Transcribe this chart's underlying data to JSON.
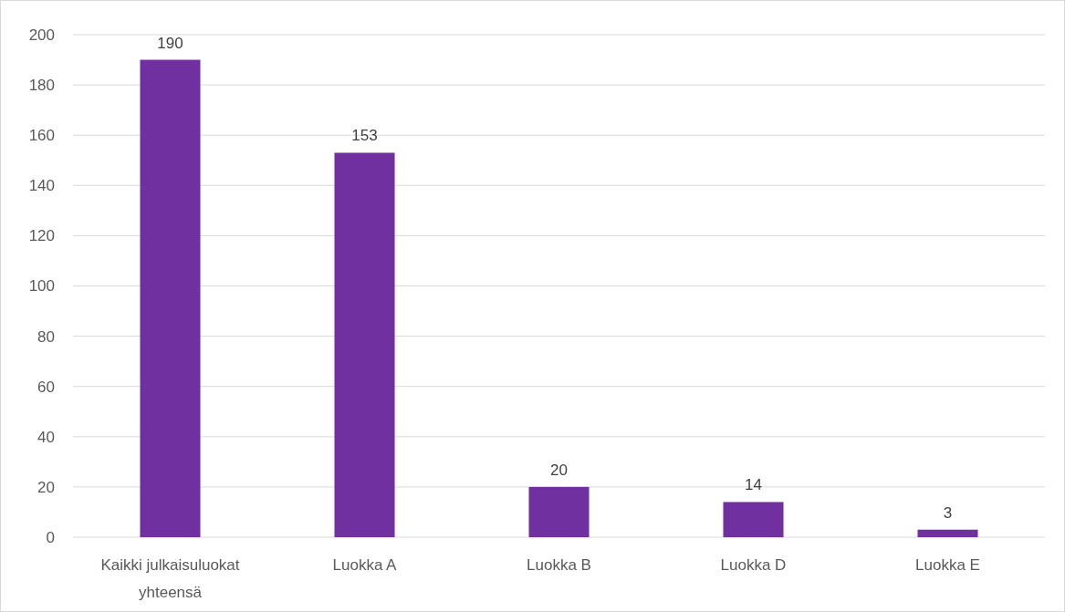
{
  "chart_data": {
    "type": "bar",
    "categories": [
      "Kaikki julkaisuluokat yhteensä",
      "Luokka A",
      "Luokka B",
      "Luokka D",
      "Luokka E"
    ],
    "values": [
      190,
      153,
      20,
      14,
      3
    ],
    "color": "#7030a0",
    "ylim": [
      0,
      200
    ],
    "yticks": [
      0,
      20,
      40,
      60,
      80,
      100,
      120,
      140,
      160,
      180,
      200
    ],
    "grid": "y",
    "data_labels": true
  }
}
